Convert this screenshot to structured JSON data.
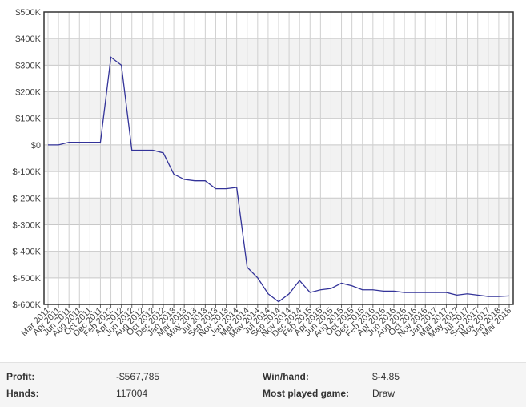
{
  "chart_data": {
    "type": "line",
    "categories": [
      "Mar 2011",
      "Apr 2011",
      "Jun 2011",
      "Aug 2011",
      "Oct 2011",
      "Dec 2011",
      "Feb 2012",
      "Apr 2012",
      "Jun 2012",
      "Aug 2012",
      "Oct 2012",
      "Dec 2012",
      "Jan 2013",
      "Mar 2013",
      "May 2013",
      "Jul 2013",
      "Sep 2013",
      "Nov 2013",
      "Jan 2014",
      "Mar 2014",
      "May 2014",
      "Jul 2014",
      "Sep 2014",
      "Nov 2014",
      "Dec 2014",
      "Feb 2015",
      "Apr 2015",
      "Jun 2015",
      "Aug 2015",
      "Oct 2015",
      "Dec 2015",
      "Feb 2016",
      "Apr 2016",
      "Jun 2016",
      "Aug 2016",
      "Oct 2016",
      "Nov 2016",
      "Jan 2017",
      "Mar 2017",
      "May 2017",
      "Jul 2017",
      "Sep 2017",
      "Nov 2017",
      "Jan 2018",
      "Mar 2018"
    ],
    "series": [
      {
        "color": "#333399",
        "values": [
          0,
          0,
          10000,
          10000,
          10000,
          10000,
          330000,
          300000,
          -20000,
          -20000,
          -20000,
          -30000,
          -110000,
          -130000,
          -135000,
          -135000,
          -165000,
          -165000,
          -160000,
          -460000,
          -500000,
          -560000,
          -590000,
          -560000,
          -510000,
          -555000,
          -545000,
          -540000,
          -520000,
          -530000,
          -545000,
          -545000,
          -550000,
          -550000,
          -555000,
          -555000,
          -555000,
          -555000,
          -555000,
          -565000,
          -560000,
          -565000,
          -570000,
          -570000,
          -568000
        ]
      }
    ],
    "ylim": [
      -600000,
      500000
    ],
    "yticks": [
      {
        "value": -600000,
        "label": "$-600K"
      },
      {
        "value": -500000,
        "label": "$-500K"
      },
      {
        "value": -400000,
        "label": "$-400K"
      },
      {
        "value": -300000,
        "label": "$-300K"
      },
      {
        "value": -200000,
        "label": "$-200K"
      },
      {
        "value": -100000,
        "label": "$-100K"
      },
      {
        "value": 0,
        "label": "$0"
      },
      {
        "value": 100000,
        "label": "$100K"
      },
      {
        "value": 200000,
        "label": "$200K"
      },
      {
        "value": 300000,
        "label": "$300K"
      },
      {
        "value": 400000,
        "label": "$400K"
      },
      {
        "value": 500000,
        "label": "$500K"
      }
    ],
    "grid": true
  },
  "stats": [
    {
      "label": "Profit:",
      "value": "-$567,785"
    },
    {
      "label": "Win/hand:",
      "value": "$-4.85"
    },
    {
      "label": "Hands:",
      "value": "117004"
    },
    {
      "label": "Most played game:",
      "value": "Draw"
    }
  ]
}
